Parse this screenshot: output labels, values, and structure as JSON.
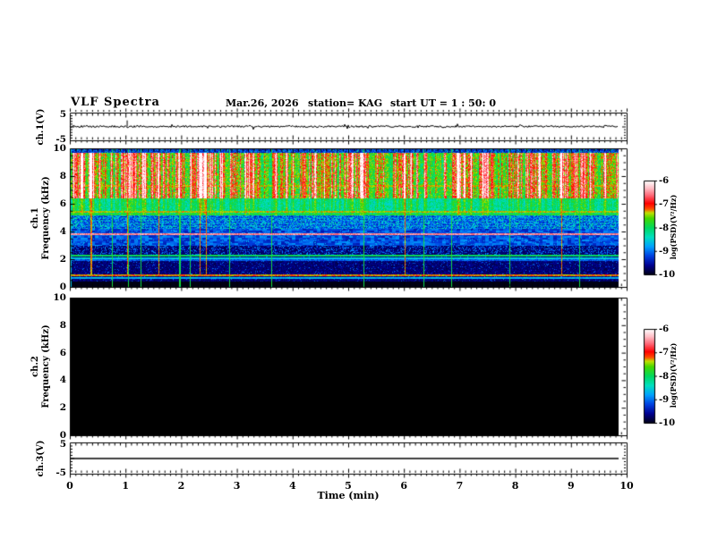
{
  "header": {
    "title": "VLF Spectra",
    "date": "Mar.26, 2026",
    "station": "station= KAG",
    "start_ut": "start UT =  1 : 50: 0"
  },
  "axes": {
    "x_title": "Time (min)",
    "x_ticks": [
      "0",
      "1",
      "2",
      "3",
      "4",
      "5",
      "6",
      "7",
      "8",
      "9",
      "10"
    ],
    "freq_ticks": [
      "10",
      "8",
      "6",
      "4",
      "2",
      "0"
    ],
    "volt_ticks": [
      "5",
      "-5"
    ],
    "colorbar_ticks": [
      "-6",
      "-7",
      "-8",
      "-9",
      "-10"
    ],
    "ch1_volt_label": "ch.1(V)",
    "ch3_volt_label": "ch.3(V)",
    "ch1_name": "ch.1",
    "ch2_name": "ch.2",
    "freq_axis_label": "Frequency (kHz)",
    "colorbar_label": "log(PSD)(V²/Hz)"
  },
  "chart_data": {
    "type": "heatmap",
    "title": "VLF Spectra",
    "date": "Mar.26, 2026",
    "station": "KAG",
    "start_ut": "1 : 50: 0",
    "x": {
      "label": "Time (min)",
      "range": [
        0,
        10
      ],
      "data_end_min": 9.85,
      "major_tick": 1,
      "minor_tick": 0.1
    },
    "colorbar": {
      "label": "log(PSD)(V²/Hz)",
      "range": [
        -10,
        -6
      ],
      "ticks": [
        -6,
        -7,
        -8,
        -9,
        -10
      ]
    },
    "colormap_stops": [
      [
        0.0,
        "#000014"
      ],
      [
        0.1,
        "#000090"
      ],
      [
        0.2,
        "#0040e0"
      ],
      [
        0.3,
        "#00a0ff"
      ],
      [
        0.4,
        "#00e0c0"
      ],
      [
        0.5,
        "#00d860"
      ],
      [
        0.6,
        "#44d800"
      ],
      [
        0.66,
        "#c0e000"
      ],
      [
        0.7,
        "#ff5000"
      ],
      [
        0.76,
        "#ff0000"
      ],
      [
        0.84,
        "#ff6070"
      ],
      [
        0.92,
        "#ffbcc4"
      ],
      [
        1.0,
        "#ffffff"
      ]
    ],
    "panels": [
      {
        "id": "ch1-waveform",
        "ylabel": "ch.1(V)",
        "ylim": [
          -5,
          5
        ],
        "signal": "near-flat trace at 0 V with small noise",
        "noise_amp_v": 0.35,
        "spike": {
          "t_min": 1.03,
          "value_v": 2.2
        }
      },
      {
        "id": "ch1-spectrogram",
        "ylabel": "ch.1 Frequency (kHz)",
        "ylim": [
          0,
          10
        ],
        "description": "active spectrogram: intense broadband sferic streaks (red/white) 6.5-10 kHz, green band 5.2-6.4 kHz, blue speckle 4.2-5.2 kHz, dark blue 3-4.2 kHz, near-black below 3 kHz with narrow horizontal carrier lines",
        "bands": [
          {
            "f": [
              9.68,
              10.0
            ],
            "level": -9.5,
            "style": "dark speckle"
          },
          {
            "f": [
              6.45,
              9.68
            ],
            "level": -7.5,
            "style": "bright vertical streaks to white"
          },
          {
            "f": [
              5.2,
              6.45
            ],
            "level": -8.2,
            "style": "green"
          },
          {
            "f": [
              4.2,
              5.2
            ],
            "level": -9.0,
            "style": "blue with cyan dots"
          },
          {
            "f": [
              3.0,
              4.2
            ],
            "level": -9.4,
            "style": "dark blue blocks"
          },
          {
            "f": [
              0.45,
              3.0
            ],
            "level": -9.8,
            "style": "near black, blue speckle"
          },
          {
            "f": [
              0.0,
              0.45
            ],
            "level": -10.0,
            "style": "black"
          }
        ],
        "h_lines": [
          {
            "f": 7.3,
            "level": -7.4
          },
          {
            "f": 5.45,
            "level": -7.4
          },
          {
            "f": 5.25,
            "level": -7.9
          },
          {
            "f": 3.85,
            "level": -6.5
          },
          {
            "f": 2.3,
            "level": -8.0
          },
          {
            "f": 2.12,
            "level": -8.6
          },
          {
            "f": 1.95,
            "level": -9.1
          },
          {
            "f": 0.85,
            "level": -7.3,
            "speckle": true
          },
          {
            "f": 0.7,
            "level": -8.7
          }
        ],
        "v_lines_min": [
          0.75,
          1.04,
          1.27,
          1.97,
          2.15,
          2.86,
          3.62,
          5.27,
          6.35,
          6.85,
          7.9,
          9.15
        ]
      },
      {
        "id": "ch2-spectrogram",
        "ylabel": "ch.2 Frequency (kHz)",
        "ylim": [
          0,
          10
        ],
        "description": "no signal: solid black panel"
      },
      {
        "id": "ch3-waveform",
        "ylabel": "ch.3(V)",
        "ylim": [
          -5,
          5
        ],
        "signal": "perfectly flat line at 0 V"
      }
    ]
  }
}
